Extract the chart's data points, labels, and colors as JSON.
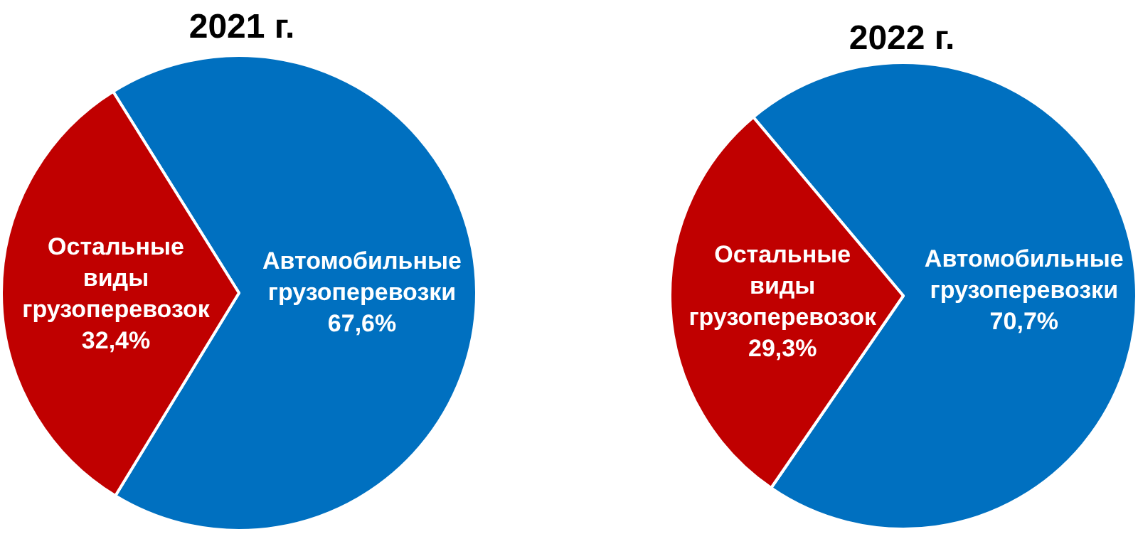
{
  "chart_data": [
    {
      "type": "pie",
      "title": "2021 г.",
      "categories": [
        "Автомобильные грузоперевозки",
        "Остальные виды грузоперевозок"
      ],
      "values": [
        67.6,
        32.4
      ],
      "colors": [
        "#0070c0",
        "#c00000"
      ],
      "value_labels": [
        "67,6%",
        "32,4%"
      ]
    },
    {
      "type": "pie",
      "title": "2022 г.",
      "categories": [
        "Автомобильные грузоперевозки",
        "Остальные виды грузоперевозок"
      ],
      "values": [
        70.7,
        29.3
      ],
      "colors": [
        "#0070c0",
        "#c00000"
      ],
      "value_labels": [
        "70,7%",
        "29,3%"
      ]
    }
  ]
}
